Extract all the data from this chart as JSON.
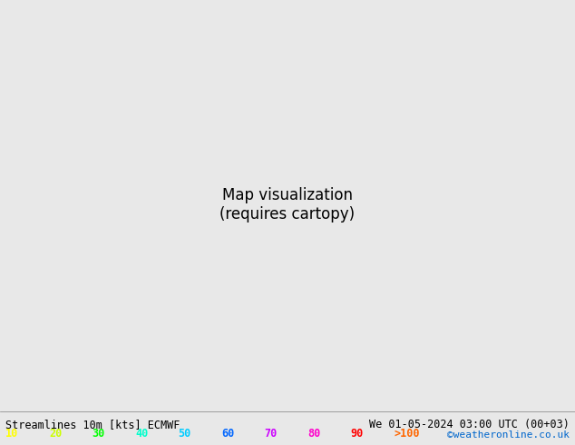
{
  "title_left": "Streamlines 10m [kts] ECMWF",
  "title_right": "We 01-05-2024 03:00 UTC (00+03)",
  "credit": "©weatheronline.co.uk",
  "legend_values": [
    "10",
    "20",
    "30",
    "40",
    "50",
    "60",
    "70",
    "80",
    "90",
    ">100"
  ],
  "legend_colors": [
    "#ffff00",
    "#ccff00",
    "#00ff00",
    "#00ffcc",
    "#00ccff",
    "#0066ff",
    "#cc00ff",
    "#ff00cc",
    "#ff0000",
    "#ff6600"
  ],
  "background_color": "#e8e8e8",
  "land_color": "#ccffcc",
  "border_color": "#333333",
  "streamline_colors_low": "#ffff00",
  "streamline_colors_mid": "#99ff00",
  "streamline_colors_high": "#00ff99",
  "map_extent": [
    0,
    35,
    54,
    72
  ],
  "figsize": [
    6.34,
    4.9
  ],
  "dpi": 100
}
